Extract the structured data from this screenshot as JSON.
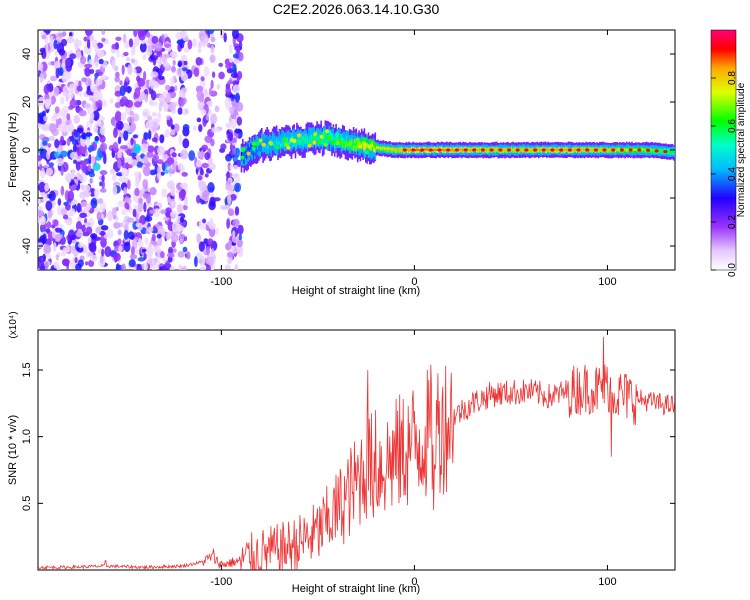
{
  "title": "C2E2.2026.063.14.10.G30",
  "chart_data": [
    {
      "type": "heatmap",
      "title": "C2E2.2026.063.14.10.G30",
      "xlabel": "Height of straight line (km)",
      "ylabel": "Frequency (Hz)",
      "xlim": [
        -195,
        135
      ],
      "ylim": [
        -50,
        50
      ],
      "x_ticks": [
        -100,
        0,
        100
      ],
      "y_ticks": [
        -40,
        -20,
        0,
        20,
        40
      ],
      "colorbar": {
        "label": "Normalized spectral amplitude",
        "range": [
          0,
          1
        ],
        "ticks": [
          "0.0",
          "0.2",
          "0.4",
          "0.6",
          "0.8"
        ],
        "tick_values": [
          0,
          0.2,
          0.4,
          0.6,
          0.8
        ],
        "colormap": "rainbow (white-purple-blue-cyan-green-yellow-red-magenta)"
      },
      "ridge": [
        {
          "x": -90,
          "freq": -3,
          "amp": 0.35
        },
        {
          "x": -80,
          "freq": 2,
          "amp": 0.45
        },
        {
          "x": -60,
          "freq": 4,
          "amp": 0.55
        },
        {
          "x": -45,
          "freq": 5,
          "amp": 0.6
        },
        {
          "x": -30,
          "freq": 2,
          "amp": 0.7
        },
        {
          "x": -10,
          "freq": 0,
          "amp": 0.8
        },
        {
          "x": 0,
          "freq": 0,
          "amp": 0.88
        },
        {
          "x": 25,
          "freq": 0,
          "amp": 0.85
        },
        {
          "x": 50,
          "freq": 0,
          "amp": 0.8
        },
        {
          "x": 75,
          "freq": 0,
          "amp": 0.85
        },
        {
          "x": 100,
          "freq": 0,
          "amp": 0.8
        },
        {
          "x": 120,
          "freq": 0,
          "amp": 0.7
        },
        {
          "x": 135,
          "freq": -1,
          "amp": 0.6
        }
      ],
      "noise_region": {
        "x_range": [
          -195,
          -90
        ],
        "freq_range": [
          -50,
          50
        ],
        "amp_range": [
          0.05,
          0.35
        ]
      }
    },
    {
      "type": "line",
      "xlabel": "Height of straight line (km)",
      "ylabel": "SNR (10 * v/v)",
      "y_multiplier": "(x10⁴)",
      "xlim": [
        -195,
        135
      ],
      "ylim": [
        0,
        1.8
      ],
      "x_ticks": [
        -100,
        0,
        100
      ],
      "y_ticks": [
        0.5,
        1.0,
        1.5
      ],
      "y_tick_labels": [
        "0.5",
        "1.0",
        "1.5"
      ],
      "color": "#ee3333",
      "series": [
        {
          "name": "SNR",
          "x": [
            -195,
            -180,
            -160,
            -140,
            -120,
            -110,
            -105,
            -100,
            -90,
            -80,
            -70,
            -60,
            -50,
            -40,
            -30,
            -25,
            -20,
            -10,
            0,
            10,
            20,
            30,
            40,
            50,
            60,
            70,
            80,
            90,
            95,
            100,
            105,
            110,
            120,
            130,
            135
          ],
          "y": [
            0.02,
            0.02,
            0.03,
            0.02,
            0.03,
            0.06,
            0.1,
            0.04,
            0.07,
            0.12,
            0.15,
            0.2,
            0.28,
            0.45,
            0.65,
            0.8,
            0.75,
            0.85,
            0.95,
            1.05,
            1.15,
            1.25,
            1.32,
            1.33,
            1.34,
            1.3,
            1.34,
            1.37,
            1.35,
            1.38,
            1.32,
            1.3,
            1.27,
            1.24,
            1.23
          ]
        }
      ],
      "spikes": [
        {
          "x": -160,
          "y": 0.07
        },
        {
          "x": -104,
          "y": 0.16
        },
        {
          "x": -24,
          "y": 1.5
        },
        {
          "x": -20,
          "y": 1.2
        },
        {
          "x": 10,
          "y": 0.45
        },
        {
          "x": 98,
          "y": 1.75
        },
        {
          "x": 102,
          "y": 0.85
        }
      ]
    }
  ]
}
